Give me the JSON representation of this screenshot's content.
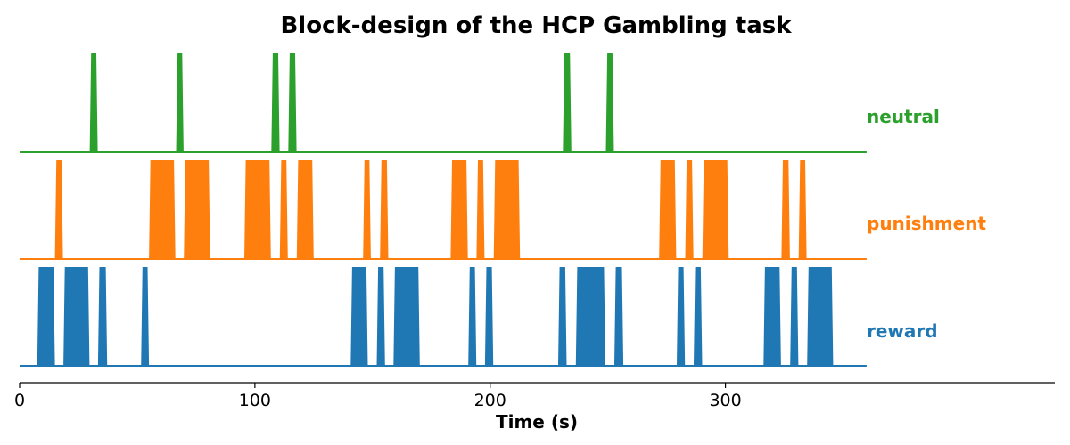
{
  "chart_data": {
    "type": "area",
    "title": "Block-design of the HCP Gambling task",
    "xlabel": "Time (s)",
    "ylabel": "",
    "xlim": [
      0,
      440
    ],
    "x_ticks": [
      0,
      100,
      200,
      300
    ],
    "time_extent": [
      0,
      360
    ],
    "series": [
      {
        "name": "neutral",
        "color": "#2ca02c",
        "blocks": [
          [
            29.8,
            33.2
          ],
          [
            66.5,
            69.7
          ],
          [
            107,
            110.5
          ],
          [
            114.2,
            117.7
          ],
          [
            230.9,
            234.5
          ],
          [
            249.2,
            252.6
          ]
        ]
      },
      {
        "name": "punishment",
        "color": "#ff7f0e",
        "blocks": [
          [
            15,
            18.4
          ],
          [
            55,
            66.2
          ],
          [
            69.8,
            81
          ],
          [
            95.5,
            106.8
          ],
          [
            110.6,
            114
          ],
          [
            117.8,
            125
          ],
          [
            146,
            149.3
          ],
          [
            153.2,
            156.7
          ],
          [
            183.2,
            190.5
          ],
          [
            194.2,
            197.6
          ],
          [
            201.5,
            212.7
          ],
          [
            271.8,
            279.1
          ],
          [
            282.9,
            286.4
          ],
          [
            290.2,
            301.4
          ],
          [
            323.8,
            327.4
          ],
          [
            331.1,
            334.5
          ]
        ]
      },
      {
        "name": "reward",
        "color": "#1f77b4",
        "blocks": [
          [
            7.5,
            15
          ],
          [
            18.6,
            29.7
          ],
          [
            33.3,
            37.2
          ],
          [
            51.6,
            55
          ],
          [
            140.7,
            148
          ],
          [
            151.8,
            155.3
          ],
          [
            158.9,
            170.1
          ],
          [
            190.7,
            194.1
          ],
          [
            197.8,
            201.3
          ],
          [
            228.9,
            232.5
          ],
          [
            236.4,
            249
          ],
          [
            252.8,
            256.6
          ],
          [
            279.3,
            282.8
          ],
          [
            286.5,
            290.1
          ],
          [
            316.2,
            323.6
          ],
          [
            327.5,
            331
          ],
          [
            334.7,
            345.8
          ]
        ]
      }
    ],
    "grid": false,
    "legend": "inline-right"
  }
}
